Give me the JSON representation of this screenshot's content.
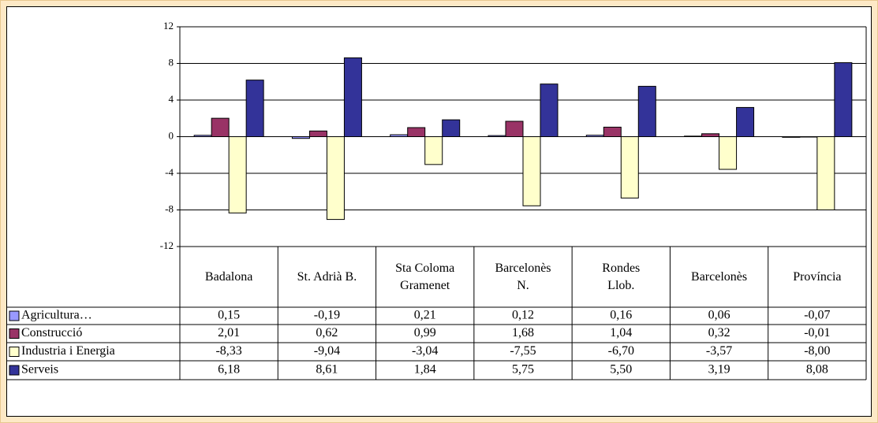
{
  "chart_data": {
    "type": "bar",
    "categories": [
      "Badalona",
      "St. Adrià B.",
      "Sta Coloma\nGramenet",
      "Barcelonès\nN.",
      "Rondes\nLlob.",
      "Barcelonès",
      "Província"
    ],
    "series": [
      {
        "name": "Agricultura…",
        "color": "#9999ff",
        "values": [
          0.15,
          -0.19,
          0.21,
          0.12,
          0.16,
          0.06,
          -0.07
        ],
        "value_labels": [
          "0,15",
          "-0,19",
          "0,21",
          "0,12",
          "0,16",
          "0,06",
          "-0,07"
        ]
      },
      {
        "name": "Construcció",
        "color": "#993366",
        "values": [
          2.01,
          0.62,
          0.99,
          1.68,
          1.04,
          0.32,
          -0.01
        ],
        "value_labels": [
          "2,01",
          "0,62",
          "0,99",
          "1,68",
          "1,04",
          "0,32",
          "-0,01"
        ]
      },
      {
        "name": "Industria i Energia",
        "color": "#ffffcc",
        "values": [
          -8.33,
          -9.04,
          -3.04,
          -7.55,
          -6.7,
          -3.57,
          -8.0
        ],
        "value_labels": [
          "-8,33",
          "-9,04",
          "-3,04",
          "-7,55",
          "-6,70",
          "-3,57",
          "-8,00"
        ]
      },
      {
        "name": "Serveis",
        "color": "#333399",
        "values": [
          6.18,
          8.61,
          1.84,
          5.75,
          5.5,
          3.19,
          8.08
        ],
        "value_labels": [
          "6,18",
          "8,61",
          "1,84",
          "5,75",
          "5,50",
          "3,19",
          "8,08"
        ]
      }
    ],
    "ylim": [
      -12,
      12
    ],
    "yticks": [
      12,
      8,
      4,
      0,
      -4,
      -8,
      -12
    ],
    "grid": true
  }
}
